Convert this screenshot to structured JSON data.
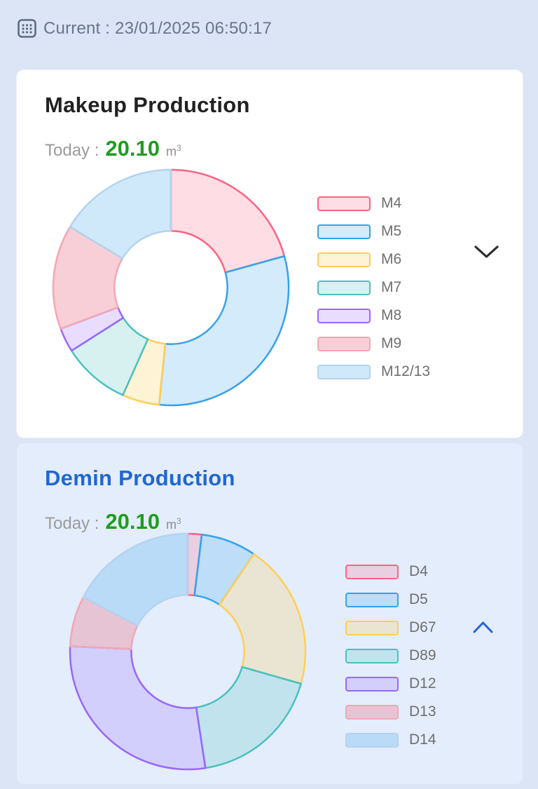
{
  "page": {
    "background": "#dbe5f6"
  },
  "header": {
    "icon": "calendar-icon",
    "text": "Current : 23/01/2025 06:50:17",
    "text_color": "#68758a"
  },
  "cards": [
    {
      "title": "Makeup Production",
      "title_color": "#212121",
      "card_background": "#ffffff",
      "today_label": "Today :",
      "today_value": "20.10",
      "unit": "m",
      "unit_sup": "3",
      "value_color": "#1d9e1d",
      "expanded": false,
      "chevron_direction": "down",
      "chevron_color": "#2b2b2b"
    },
    {
      "title": "Demin Production",
      "title_color": "#2166d1",
      "card_background": "#e3edfb",
      "today_label": "Today :",
      "today_value": "20.10",
      "unit": "m",
      "unit_sup": "3",
      "value_color": "#1d9e1d",
      "expanded": true,
      "chevron_direction": "up",
      "chevron_color": "#2563d8"
    }
  ],
  "chart_data": [
    {
      "type": "doughnut",
      "title": "Makeup Production",
      "labels": [
        "M4",
        "M5",
        "M6",
        "M7",
        "M8",
        "M9",
        "M12/13"
      ],
      "values_percent": [
        20.7,
        30.9,
        5.1,
        9.3,
        3.3,
        14.3,
        16.4
      ],
      "border_colors": [
        "#FF6384",
        "#36A2EB",
        "#FFCE56",
        "#4BC0C0",
        "#9966FF",
        "#F2A7B6",
        "#B3D3EF"
      ],
      "fill_colors": [
        "rgba(255,99,132,0.22)",
        "rgba(54,162,235,0.22)",
        "rgba(255,206,86,0.25)",
        "rgba(75,192,192,0.22)",
        "rgba(153,102,255,0.22)",
        "rgba(238,130,150,0.38)",
        "rgba(54,162,235,0.24)"
      ],
      "start_angle_deg": 0,
      "cutout_ratio": 0.48,
      "legend_position": "right",
      "grid": false
    },
    {
      "type": "doughnut",
      "title": "Demin Production",
      "labels": [
        "D4",
        "D5",
        "D67",
        "D89",
        "D12",
        "D13",
        "D14"
      ],
      "values_percent": [
        1.9,
        7.6,
        19.9,
        18.2,
        28.1,
        6.9,
        17.4
      ],
      "border_colors": [
        "#FF6384",
        "#36A2EB",
        "#FFCE56",
        "#4BC0C0",
        "#9966FF",
        "#F2A7B6",
        "#B3D3EF"
      ],
      "fill_colors": [
        "rgba(255,99,132,0.22)",
        "rgba(54,162,235,0.22)",
        "rgba(255,206,86,0.25)",
        "rgba(75,192,192,0.22)",
        "rgba(153,102,255,0.22)",
        "rgba(238,130,150,0.38)",
        "rgba(54,162,235,0.24)"
      ],
      "start_angle_deg": 0,
      "cutout_ratio": 0.48,
      "legend_position": "right",
      "grid": false
    }
  ]
}
